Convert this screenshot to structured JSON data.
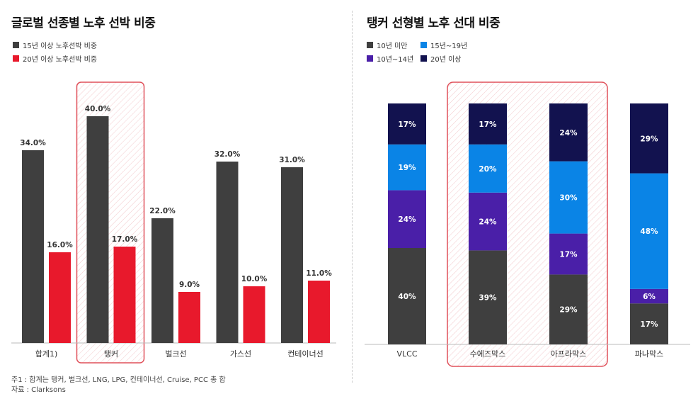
{
  "left": {
    "title": "글로벌 선종별 노후 선박 비중",
    "legend": [
      "15년 이상 노후선박 비중",
      "20년 이상 노후선박 비중"
    ]
  },
  "right": {
    "title": "탱커 선형별 노후 선대 비중",
    "legend": [
      "10년 미만",
      "15년~19년",
      "10년~14년",
      "20년 이상"
    ]
  },
  "notes": {
    "note1": "주1 : 합계는 탱커, 벌크선, LNG, LPG, 컨테이너선, Cruise, PCC 총 합",
    "source": "자료 : Clarksons"
  },
  "colors": {
    "dark_gray": "#3f3f3f",
    "red": "#e8192c",
    "blue": "#0a84e6",
    "purple": "#4a1fa8",
    "navy": "#12124f",
    "highlight_border": "#e0505a"
  },
  "chart_data": [
    {
      "type": "bar",
      "title": "글로벌 선종별 노후 선박 비중",
      "categories": [
        "합계1)",
        "탱커",
        "벌크선",
        "가스선",
        "컨테이너선"
      ],
      "series": [
        {
          "name": "15년 이상 노후선박 비중",
          "values": [
            34.0,
            40.0,
            22.0,
            32.0,
            31.0
          ],
          "labels": [
            "34.0%",
            "40.0%",
            "22.0%",
            "32.0%",
            "31.0%"
          ]
        },
        {
          "name": "20년 이상 노후선박 비중",
          "values": [
            16.0,
            17.0,
            9.0,
            10.0,
            11.0
          ],
          "labels": [
            "16.0%",
            "17.0%",
            "9.0%",
            "10.0%",
            "11.0%"
          ]
        }
      ],
      "highlight": "탱커",
      "ylim": [
        0,
        40
      ]
    },
    {
      "type": "bar",
      "stacked": true,
      "title": "탱커 선형별 노후 선대 비중",
      "categories": [
        "VLCC",
        "수에즈막스",
        "아프라막스",
        "파나막스"
      ],
      "series": [
        {
          "name": "10년 미만",
          "values": [
            40,
            39,
            29,
            17
          ],
          "labels": [
            "40%",
            "39%",
            "29%",
            "17%"
          ]
        },
        {
          "name": "10년~14년",
          "values": [
            24,
            24,
            17,
            6
          ],
          "labels": [
            "24%",
            "24%",
            "17%",
            "6%"
          ]
        },
        {
          "name": "15년~19년",
          "values": [
            19,
            20,
            30,
            48
          ],
          "labels": [
            "19%",
            "20%",
            "30%",
            "48%"
          ]
        },
        {
          "name": "20년 이상",
          "values": [
            17,
            17,
            24,
            29
          ],
          "labels": [
            "17%",
            "17%",
            "24%",
            "29%"
          ]
        }
      ],
      "highlight": [
        "수에즈막스",
        "아프라막스"
      ],
      "ylim": [
        0,
        100
      ]
    }
  ]
}
